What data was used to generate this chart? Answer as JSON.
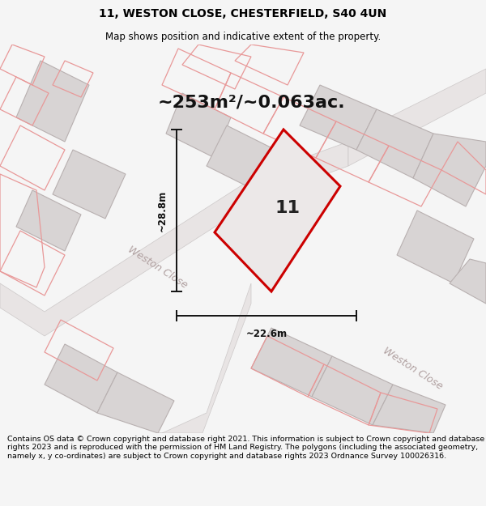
{
  "title_line1": "11, WESTON CLOSE, CHESTERFIELD, S40 4UN",
  "title_line2": "Map shows position and indicative extent of the property.",
  "footer_text": "Contains OS data © Crown copyright and database right 2021. This information is subject to Crown copyright and database rights 2023 and is reproduced with the permission of HM Land Registry. The polygons (including the associated geometry, namely x, y co-ordinates) are subject to Crown copyright and database rights 2023 Ordnance Survey 100026316.",
  "area_label": "~253m²/~0.063ac.",
  "width_label": "~22.6m",
  "height_label": "~28.8m",
  "plot_number": "11",
  "road_label1": "Weston Close",
  "road_label2": "Weston Close",
  "bg_color": "#f5f5f5",
  "title_fontsize": 10,
  "subtitle_fontsize": 8.5,
  "footer_fontsize": 6.8,
  "area_fontsize": 16,
  "dim_fontsize": 8.5,
  "plot_num_fontsize": 16,
  "road_fontsize": 9
}
